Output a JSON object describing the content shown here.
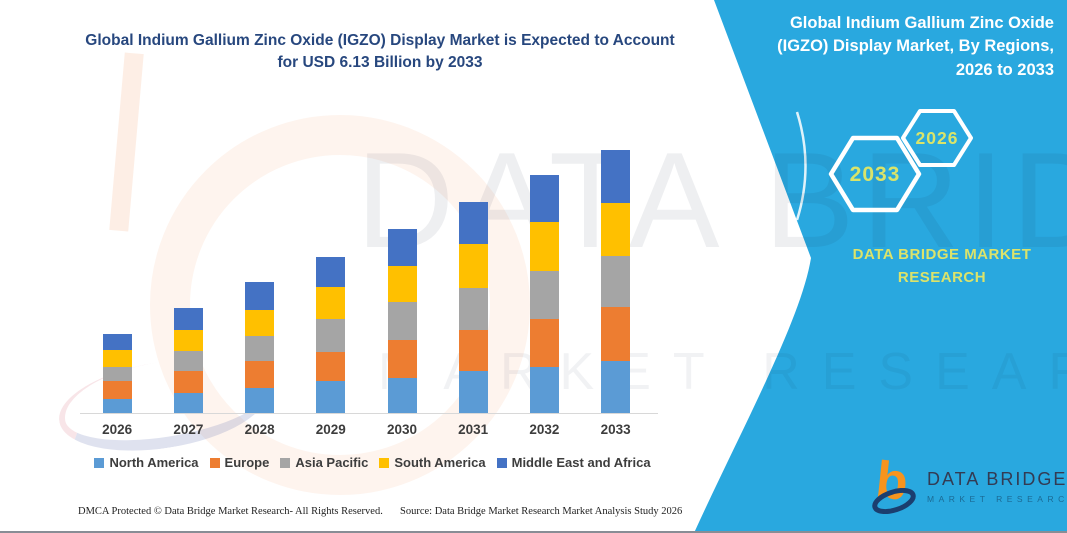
{
  "page": {
    "background": "#FFFFFF",
    "accent_blue": "#29A8DF"
  },
  "left_panel": {
    "title": "Global Indium Gallium Zinc Oxide (IGZO) Display Market is Expected to Account for USD 6.13 Billion by 2033",
    "footer_left": "DMCA Protected © Data Bridge Market Research-  All Rights Reserved.",
    "footer_right": "Source: Data Bridge Market Research  Market Analysis Study 2026"
  },
  "sidebar": {
    "heading": "Global Indium Gallium Zinc Oxide (IGZO) Display Market, By Regions, 2026 to 2033",
    "hexagons": [
      {
        "label": "2033"
      },
      {
        "label": "2026"
      }
    ],
    "brand_text": "DATA BRIDGE MARKET RESEARCH",
    "logo": {
      "title": "DATA BRIDGE",
      "subtitle": "MARKET RESEARCH"
    },
    "background_color": "#29A8DF",
    "accent_text_color": "#D9E46A"
  },
  "watermark": {
    "line1": "DATA BRIDGE",
    "line2": "MARKET RESEARCH"
  },
  "chart_data": {
    "type": "bar",
    "stacked": true,
    "title": "Global Indium Gallium Zinc Oxide (IGZO) Display Market is Expected to Account for USD 6.13 Billion by 2033",
    "unit": "USD Billion",
    "categories": [
      "2026",
      "2027",
      "2028",
      "2029",
      "2030",
      "2031",
      "2032",
      "2033"
    ],
    "series": [
      {
        "name": "North America",
        "color": "#5B9BD5",
        "values": [
          0.36,
          0.49,
          0.6,
          0.76,
          0.84,
          1.01,
          1.1,
          1.24
        ]
      },
      {
        "name": "Europe",
        "color": "#ED7D31",
        "values": [
          0.4,
          0.5,
          0.64,
          0.69,
          0.87,
          0.93,
          1.11,
          1.24
        ]
      },
      {
        "name": "Asia Pacific",
        "color": "#A5A5A5",
        "values": [
          0.34,
          0.48,
          0.57,
          0.75,
          0.9,
          0.99,
          1.12,
          1.19
        ]
      },
      {
        "name": "South America",
        "color": "#FFC000",
        "values": [
          0.39,
          0.47,
          0.6,
          0.75,
          0.83,
          1.01,
          1.12,
          1.24
        ]
      },
      {
        "name": "Middle East and Africa",
        "color": "#4472C4",
        "values": [
          0.37,
          0.53,
          0.64,
          0.7,
          0.86,
          0.97,
          1.1,
          1.22
        ]
      }
    ],
    "totals": [
      1.86,
      2.47,
      3.05,
      3.65,
      4.3,
      4.91,
      5.55,
      6.13
    ],
    "ylim": [
      0,
      6.2
    ],
    "grid": false,
    "value_axis_visible": false,
    "legend_position": "bottom",
    "xlabel": "",
    "ylabel": ""
  }
}
